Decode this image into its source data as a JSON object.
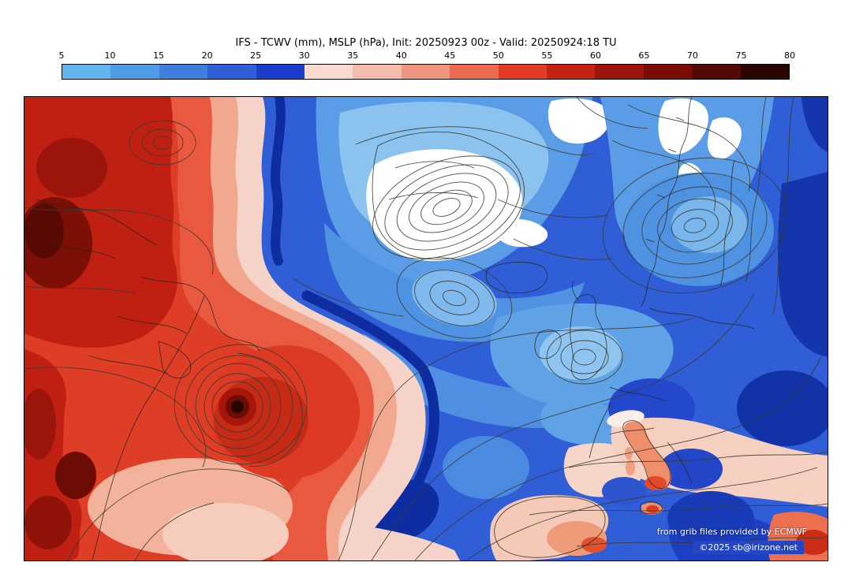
{
  "header": {
    "title": "IFS - TCWV (mm), MSLP (hPa), Init: 20250923 00z - Valid: 20250924:18 TU"
  },
  "colorbar": {
    "unit": "mm",
    "ticks": [
      "5",
      "10",
      "15",
      "20",
      "25",
      "30",
      "35",
      "40",
      "45",
      "50",
      "55",
      "60",
      "65",
      "70",
      "75",
      "80"
    ],
    "colors": [
      "#62b4ec",
      "#4e9ce6",
      "#3f7ede",
      "#2f5ed6",
      "#1a3ecb",
      "#f7d9d0",
      "#f5bcab",
      "#f09580",
      "#ea6a52",
      "#e23b28",
      "#c62214",
      "#9c150c",
      "#7a0e06",
      "#540a04",
      "#2b0502"
    ]
  },
  "map": {
    "credit_line1": "from grib files provided by ECMWF",
    "credit_line2": "©2025 sb@irizone.net",
    "shaded_parameter": "TCWV (mm)",
    "contour_parameter": "MSLP (hPa)",
    "model": "IFS",
    "init": "20250923 00z",
    "valid": "20250924:18 TU"
  }
}
